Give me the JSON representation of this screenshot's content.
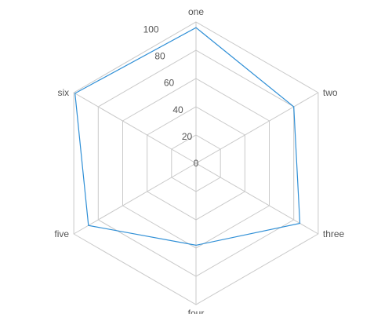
{
  "chart_data": {
    "type": "radar",
    "categories": [
      "one",
      "two",
      "three",
      "four",
      "five",
      "six"
    ],
    "series": [
      {
        "values": [
          96,
          80,
          85,
          58,
          88,
          99
        ]
      }
    ],
    "rlim": [
      0,
      100
    ],
    "ticks": [
      "0",
      "20",
      "40",
      "60",
      "80",
      "100"
    ],
    "grid": true,
    "colors": {
      "series": "#2f8fd6",
      "grid": "#c9c9c9",
      "text": "#555555"
    }
  }
}
